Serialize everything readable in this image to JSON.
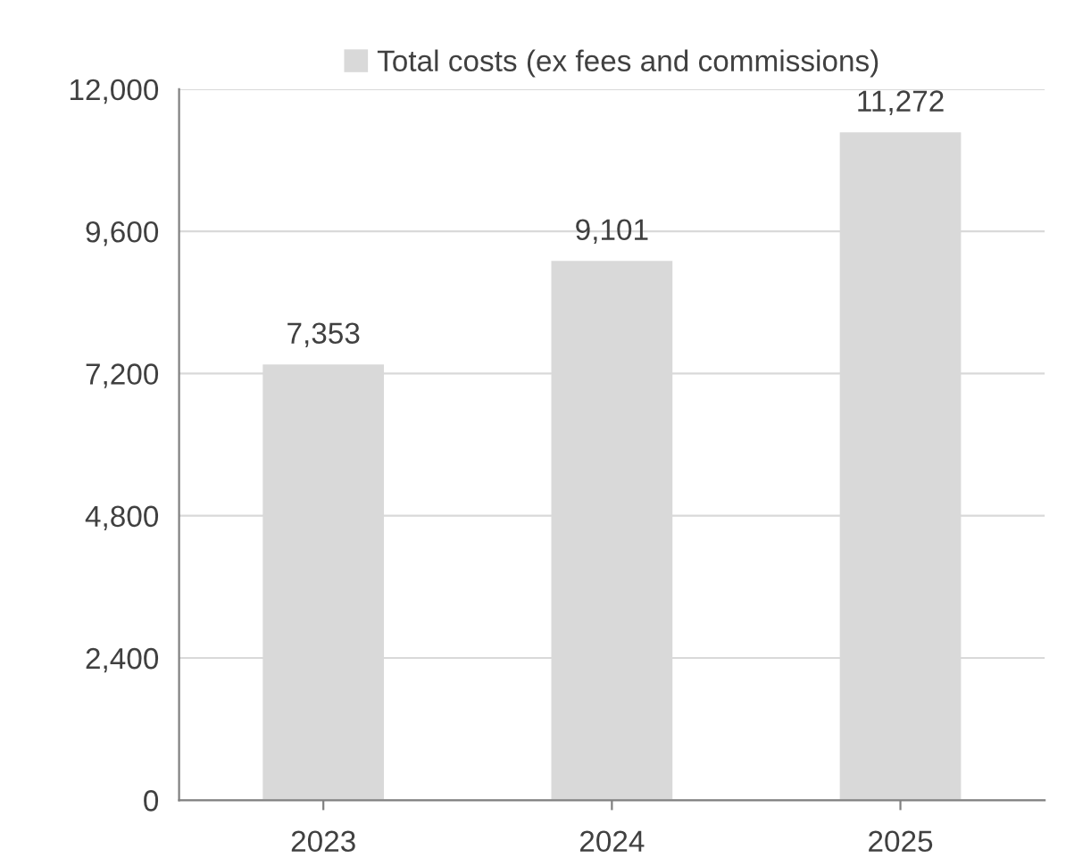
{
  "chart_data": {
    "type": "bar",
    "categories": [
      "2023",
      "2024",
      "2025"
    ],
    "series": [
      {
        "name": "Total costs (ex fees and commissions)",
        "color": "#d9d9d9",
        "values": [
          7353,
          9101,
          11272
        ]
      }
    ],
    "ylim": [
      0,
      12000
    ],
    "yticks": [
      0,
      {
        "value": 2400,
        "label": "2,400"
      },
      {
        "value": 4800,
        "label": "4,800"
      },
      {
        "value": 7200,
        "label": "7,200"
      },
      {
        "value": 9600,
        "label": "9,600"
      },
      {
        "value": 12000,
        "label": "12,000"
      }
    ],
    "value_labels": [
      "7,353",
      "9,101",
      "11,272"
    ],
    "grid": "y",
    "legend": "top"
  }
}
